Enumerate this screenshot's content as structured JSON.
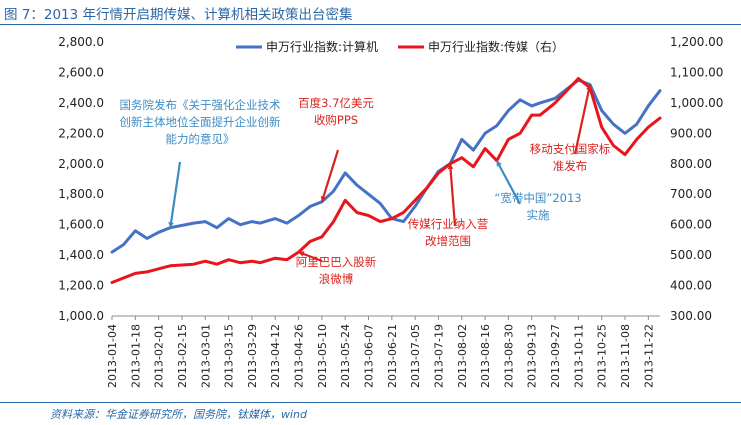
{
  "figure_title": "图 7：2013 年行情开启期传媒、计算机相关政策出台密集",
  "source": "资料来源：华金证券研究所，国务院，钛媒体，wind",
  "colors": {
    "computer": "#4472c4",
    "media": "#e8161c",
    "annotation_blue": "#3d8cc4",
    "annotation_red": "#d9231f",
    "frame": "#2b67a6"
  },
  "chart_data": {
    "type": "line",
    "title": "",
    "legend_position": "top",
    "grid": false,
    "x_ticks": [
      "2013-01-04",
      "2013-01-18",
      "2013-02-01",
      "2013-02-15",
      "2013-03-01",
      "2013-03-15",
      "2013-03-29",
      "2013-04-12",
      "2013-04-26",
      "2013-05-10",
      "2013-05-24",
      "2013-06-07",
      "2013-06-21",
      "2013-07-05",
      "2013-07-19",
      "2013-08-02",
      "2013-08-16",
      "2013-08-30",
      "2013-09-13",
      "2013-09-27",
      "2013-10-11",
      "2013-10-25",
      "2013-11-08",
      "2013-11-22"
    ],
    "x_range": [
      "2013-01-04",
      "2013-11-29"
    ],
    "y_left": {
      "ticks": [
        "1,000.0",
        "1,200.0",
        "1,400.0",
        "1,600.0",
        "1,800.0",
        "2,000.0",
        "2,200.0",
        "2,400.0",
        "2,600.0",
        "2,800.0"
      ],
      "range": [
        1000,
        2800
      ]
    },
    "y_right": {
      "ticks": [
        "300.00",
        "400.00",
        "500.00",
        "600.00",
        "700.00",
        "800.00",
        "900.00",
        "1,000.00",
        "1,100.00",
        "1,200.00"
      ],
      "range": [
        300,
        1200
      ]
    },
    "series": [
      {
        "name": "申万行业指数:计算机",
        "axis": "left",
        "color": "#4472c4",
        "x": [
          "2013-01-04",
          "2013-01-11",
          "2013-01-18",
          "2013-01-25",
          "2013-02-01",
          "2013-02-08",
          "2013-02-22",
          "2013-03-01",
          "2013-03-08",
          "2013-03-15",
          "2013-03-22",
          "2013-03-29",
          "2013-04-03",
          "2013-04-12",
          "2013-04-19",
          "2013-04-26",
          "2013-05-03",
          "2013-05-10",
          "2013-05-17",
          "2013-05-24",
          "2013-05-31",
          "2013-06-07",
          "2013-06-14",
          "2013-06-21",
          "2013-06-28",
          "2013-07-05",
          "2013-07-12",
          "2013-07-19",
          "2013-07-26",
          "2013-08-02",
          "2013-08-09",
          "2013-08-16",
          "2013-08-23",
          "2013-08-30",
          "2013-09-06",
          "2013-09-13",
          "2013-09-18",
          "2013-09-27",
          "2013-10-11",
          "2013-10-18",
          "2013-10-25",
          "2013-11-01",
          "2013-11-08",
          "2013-11-15",
          "2013-11-22",
          "2013-11-29"
        ],
        "values": [
          1420,
          1470,
          1560,
          1510,
          1550,
          1580,
          1610,
          1620,
          1580,
          1640,
          1600,
          1620,
          1610,
          1640,
          1610,
          1660,
          1720,
          1750,
          1820,
          1940,
          1860,
          1800,
          1740,
          1640,
          1620,
          1720,
          1840,
          1950,
          2000,
          2160,
          2090,
          2200,
          2250,
          2350,
          2420,
          2380,
          2400,
          2430,
          2550,
          2520,
          2350,
          2260,
          2200,
          2260,
          2380,
          2480
        ]
      },
      {
        "name": "申万行业指数:传媒（右）",
        "axis": "right",
        "color": "#e8161c",
        "x": [
          "2013-01-04",
          "2013-01-11",
          "2013-01-18",
          "2013-01-25",
          "2013-02-01",
          "2013-02-08",
          "2013-02-22",
          "2013-03-01",
          "2013-03-08",
          "2013-03-15",
          "2013-03-22",
          "2013-03-29",
          "2013-04-03",
          "2013-04-12",
          "2013-04-19",
          "2013-04-26",
          "2013-05-03",
          "2013-05-10",
          "2013-05-17",
          "2013-05-24",
          "2013-05-31",
          "2013-06-07",
          "2013-06-14",
          "2013-06-21",
          "2013-06-28",
          "2013-07-05",
          "2013-07-12",
          "2013-07-19",
          "2013-07-26",
          "2013-08-02",
          "2013-08-09",
          "2013-08-16",
          "2013-08-23",
          "2013-08-30",
          "2013-09-06",
          "2013-09-13",
          "2013-09-18",
          "2013-09-27",
          "2013-10-11",
          "2013-10-18",
          "2013-10-25",
          "2013-11-01",
          "2013-11-08",
          "2013-11-15",
          "2013-11-22",
          "2013-11-29"
        ],
        "values": [
          410,
          425,
          440,
          445,
          455,
          465,
          470,
          480,
          470,
          485,
          475,
          480,
          475,
          490,
          485,
          510,
          545,
          560,
          610,
          680,
          640,
          630,
          610,
          620,
          640,
          680,
          720,
          770,
          800,
          820,
          790,
          850,
          810,
          880,
          900,
          960,
          960,
          1000,
          1080,
          1050,
          920,
          860,
          830,
          880,
          920,
          950
        ]
      }
    ],
    "annotations": [
      {
        "lines": [
          "国务院发布《关于强化企业技术",
          "创新主体地位全面提升企业创新",
          "能力的意见》"
        ],
        "color": "blue",
        "x": "2013-02-08",
        "series": 0
      },
      {
        "lines": [
          "百度3.7亿美元",
          "收购PPS"
        ],
        "color": "red",
        "x": "2013-05-10",
        "series": 0
      },
      {
        "lines": [
          "阿里巴巴入股新",
          "浪微博"
        ],
        "color": "red",
        "x": "2013-04-26",
        "series": 1
      },
      {
        "lines": [
          "传媒行业纳入营",
          "改增范围"
        ],
        "color": "red",
        "x": "2013-07-26",
        "series": 1
      },
      {
        "lines": [
          "“宽带中国”2013",
          "实施"
        ],
        "color": "blue",
        "x": "2013-08-23",
        "series": 1
      },
      {
        "lines": [
          "移动支付国家标",
          "准发布"
        ],
        "color": "red",
        "x": "2013-10-18",
        "series": 0
      }
    ]
  }
}
